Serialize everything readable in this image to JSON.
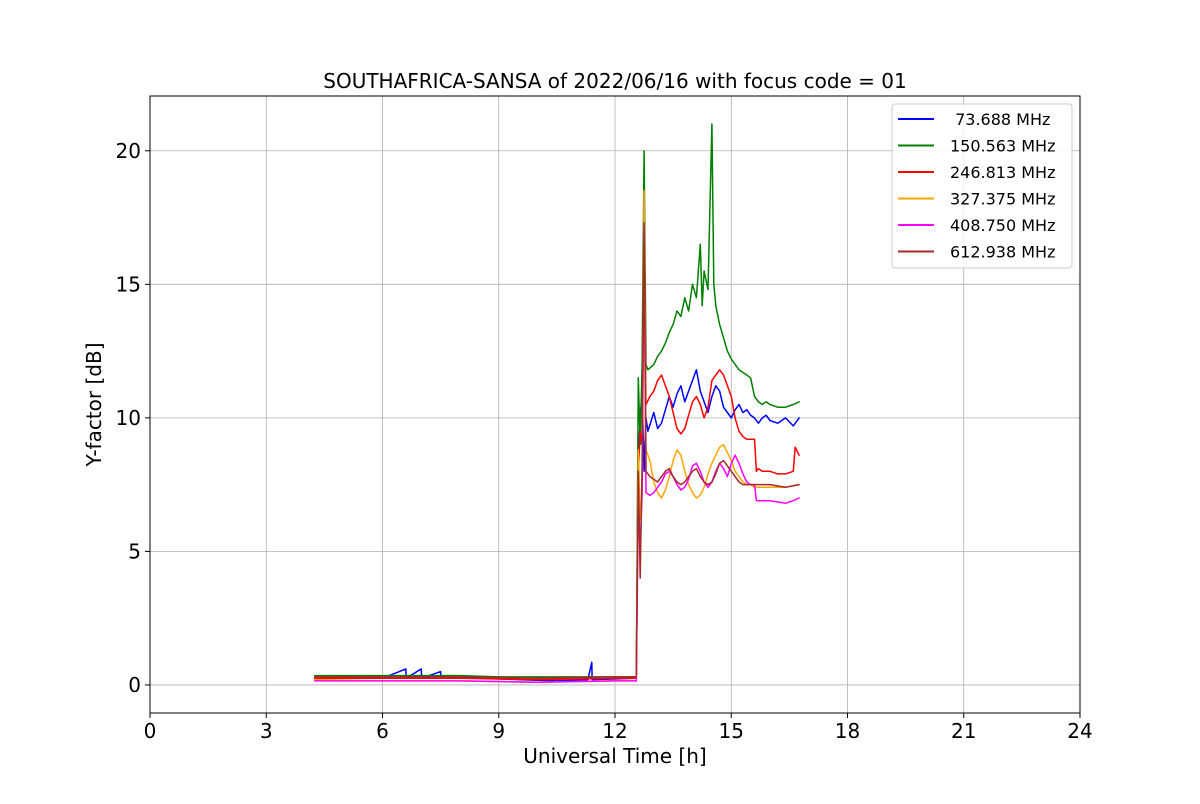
{
  "chart_data": {
    "type": "line",
    "title": "SOUTHAFRICA-SANSA of 2022/06/16 with focus code = 01",
    "xlabel": "Universal Time [h]",
    "ylabel": "Y-factor [dB]",
    "xlim": [
      0,
      24
    ],
    "ylim": [
      -1.05,
      22.05
    ],
    "xticks": [
      0,
      3,
      6,
      9,
      12,
      15,
      18,
      21,
      24
    ],
    "yticks": [
      0,
      5,
      10,
      15,
      20
    ],
    "grid": true,
    "legend_position": "top-right",
    "series": [
      {
        "name": " 73.688 MHz",
        "color": "#0000ff",
        "x": [
          4.25,
          5.0,
          6.0,
          6.6,
          6.61,
          7.0,
          7.01,
          7.5,
          7.51,
          8.5,
          9.5,
          10.5,
          11.3,
          11.4,
          11.41,
          12.55,
          12.6,
          12.65,
          12.7,
          12.75,
          12.8,
          12.85,
          13.0,
          13.1,
          13.2,
          13.3,
          13.4,
          13.5,
          13.6,
          13.7,
          13.8,
          13.9,
          14.0,
          14.1,
          14.2,
          14.3,
          14.4,
          14.5,
          14.6,
          14.7,
          14.8,
          14.9,
          15.0,
          15.1,
          15.2,
          15.3,
          15.4,
          15.5,
          15.6,
          15.7,
          15.8,
          15.9,
          16.0,
          16.2,
          16.4,
          16.6,
          16.75
        ],
        "y": [
          0.25,
          0.3,
          0.25,
          0.6,
          0.25,
          0.6,
          0.25,
          0.5,
          0.25,
          0.25,
          0.2,
          0.15,
          0.2,
          0.85,
          0.2,
          0.25,
          8.5,
          10.0,
          11.0,
          8.0,
          10.0,
          9.5,
          10.2,
          9.6,
          9.8,
          10.3,
          10.8,
          10.4,
          10.9,
          11.2,
          10.6,
          11.0,
          11.4,
          11.8,
          11.0,
          10.6,
          10.2,
          10.8,
          11.2,
          11.0,
          10.4,
          10.2,
          10.0,
          10.3,
          10.5,
          10.2,
          10.3,
          10.1,
          10.0,
          9.8,
          10.0,
          10.1,
          9.9,
          9.8,
          10.0,
          9.7,
          10.0
        ]
      },
      {
        "name": "150.563 MHz",
        "color": "#008000",
        "x": [
          4.25,
          5.0,
          6.0,
          7.0,
          8.0,
          9.0,
          10.0,
          11.0,
          12.0,
          12.55,
          12.6,
          12.65,
          12.7,
          12.75,
          12.8,
          12.85,
          13.0,
          13.1,
          13.2,
          13.3,
          13.4,
          13.5,
          13.6,
          13.7,
          13.8,
          13.9,
          14.0,
          14.1,
          14.2,
          14.25,
          14.3,
          14.4,
          14.5,
          14.55,
          14.6,
          14.7,
          14.8,
          14.9,
          15.0,
          15.1,
          15.2,
          15.3,
          15.4,
          15.5,
          15.6,
          15.7,
          15.8,
          15.9,
          16.0,
          16.2,
          16.4,
          16.6,
          16.75
        ],
        "y": [
          0.35,
          0.35,
          0.35,
          0.35,
          0.35,
          0.3,
          0.3,
          0.3,
          0.3,
          0.3,
          11.5,
          9.0,
          12.0,
          20.0,
          12.0,
          11.8,
          12.0,
          12.3,
          12.5,
          12.8,
          13.2,
          13.5,
          14.0,
          13.8,
          14.5,
          14.0,
          15.0,
          14.5,
          16.5,
          14.2,
          15.5,
          14.8,
          21.0,
          15.0,
          14.2,
          13.5,
          13.0,
          12.5,
          12.2,
          12.0,
          11.8,
          11.7,
          11.6,
          11.5,
          10.8,
          10.6,
          10.5,
          10.6,
          10.5,
          10.4,
          10.4,
          10.5,
          10.6
        ]
      },
      {
        "name": "246.813 MHz",
        "color": "#ff0000",
        "x": [
          4.25,
          6.0,
          8.0,
          10.0,
          12.0,
          12.55,
          12.6,
          12.65,
          12.7,
          12.75,
          12.8,
          12.9,
          13.0,
          13.1,
          13.2,
          13.3,
          13.4,
          13.5,
          13.6,
          13.7,
          13.8,
          13.9,
          14.0,
          14.1,
          14.2,
          14.3,
          14.4,
          14.5,
          14.6,
          14.7,
          14.8,
          14.9,
          15.0,
          15.1,
          15.2,
          15.3,
          15.4,
          15.5,
          15.6,
          15.65,
          15.7,
          15.8,
          15.9,
          16.0,
          16.2,
          16.4,
          16.6,
          16.65,
          16.75
        ],
        "y": [
          0.25,
          0.25,
          0.25,
          0.2,
          0.25,
          0.25,
          8.0,
          9.5,
          9.0,
          18.0,
          10.5,
          10.8,
          11.0,
          11.4,
          11.6,
          11.2,
          10.8,
          10.2,
          9.6,
          9.4,
          9.6,
          10.1,
          10.6,
          10.8,
          10.5,
          10.0,
          10.4,
          11.4,
          11.6,
          11.8,
          11.6,
          11.2,
          10.8,
          10.0,
          9.5,
          9.3,
          9.2,
          9.2,
          9.2,
          8.0,
          8.1,
          8.0,
          8.0,
          8.0,
          7.9,
          7.9,
          8.0,
          8.9,
          8.6
        ]
      },
      {
        "name": "327.375 MHz",
        "color": "#ffa500",
        "x": [
          4.25,
          6.0,
          8.0,
          10.0,
          12.0,
          12.55,
          12.6,
          12.65,
          12.7,
          12.75,
          12.8,
          12.9,
          13.0,
          13.1,
          13.2,
          13.3,
          13.4,
          13.5,
          13.6,
          13.7,
          13.8,
          13.9,
          14.0,
          14.1,
          14.2,
          14.3,
          14.4,
          14.5,
          14.6,
          14.7,
          14.8,
          14.9,
          15.0,
          15.1,
          15.2,
          15.3,
          15.4,
          15.5,
          15.6,
          15.7,
          16.0,
          16.4,
          16.75
        ],
        "y": [
          0.2,
          0.15,
          0.15,
          0.1,
          0.15,
          0.15,
          8.8,
          6.2,
          7.2,
          18.5,
          8.8,
          8.4,
          7.6,
          7.2,
          7.0,
          7.3,
          7.8,
          8.4,
          8.8,
          8.6,
          8.0,
          7.5,
          7.2,
          7.0,
          7.1,
          7.4,
          7.9,
          8.3,
          8.6,
          8.9,
          9.0,
          8.7,
          8.4,
          8.0,
          7.8,
          7.6,
          7.5,
          7.5,
          7.4,
          7.4,
          7.4,
          7.4,
          7.5
        ]
      },
      {
        "name": "408.750 MHz",
        "color": "#ff00ff",
        "x": [
          4.25,
          6.0,
          8.0,
          10.0,
          12.0,
          12.55,
          12.6,
          12.65,
          12.7,
          12.75,
          12.8,
          12.9,
          13.0,
          13.1,
          13.2,
          13.3,
          13.4,
          13.5,
          13.6,
          13.7,
          13.8,
          13.9,
          14.0,
          14.1,
          14.2,
          14.3,
          14.4,
          14.5,
          14.6,
          14.7,
          14.8,
          14.9,
          15.0,
          15.1,
          15.2,
          15.3,
          15.4,
          15.5,
          15.6,
          15.65,
          15.7,
          16.0,
          16.4,
          16.6,
          16.75
        ],
        "y": [
          0.15,
          0.15,
          0.15,
          0.1,
          0.15,
          0.15,
          6.8,
          5.0,
          7.2,
          17.0,
          7.2,
          7.1,
          7.2,
          7.4,
          7.6,
          7.9,
          8.0,
          7.8,
          7.5,
          7.3,
          7.4,
          7.7,
          8.2,
          8.3,
          8.0,
          7.6,
          7.4,
          7.6,
          8.0,
          8.3,
          8.1,
          7.8,
          8.3,
          8.6,
          8.3,
          7.9,
          7.6,
          7.5,
          7.5,
          6.9,
          6.9,
          6.9,
          6.8,
          6.9,
          7.0
        ]
      },
      {
        "name": "612.938 MHz",
        "color": "#a52a2a",
        "x": [
          4.25,
          6.0,
          8.0,
          10.0,
          12.0,
          12.55,
          12.6,
          12.65,
          12.7,
          12.75,
          12.8,
          12.9,
          13.0,
          13.1,
          13.2,
          13.3,
          13.4,
          13.5,
          13.6,
          13.7,
          13.8,
          13.9,
          14.0,
          14.1,
          14.2,
          14.3,
          14.4,
          14.5,
          14.6,
          14.7,
          14.8,
          14.9,
          15.0,
          15.1,
          15.2,
          15.3,
          15.4,
          15.5,
          15.6,
          15.8,
          16.0,
          16.4,
          16.75
        ],
        "y": [
          0.3,
          0.3,
          0.3,
          0.25,
          0.3,
          0.3,
          8.0,
          4.0,
          8.3,
          17.3,
          8.0,
          7.8,
          7.7,
          7.6,
          7.8,
          8.0,
          8.1,
          7.8,
          7.6,
          7.5,
          7.6,
          7.8,
          8.0,
          8.1,
          7.8,
          7.6,
          7.5,
          7.6,
          7.9,
          8.3,
          8.4,
          8.2,
          8.0,
          7.8,
          7.6,
          7.5,
          7.5,
          7.5,
          7.5,
          7.5,
          7.5,
          7.4,
          7.5
        ]
      }
    ]
  }
}
